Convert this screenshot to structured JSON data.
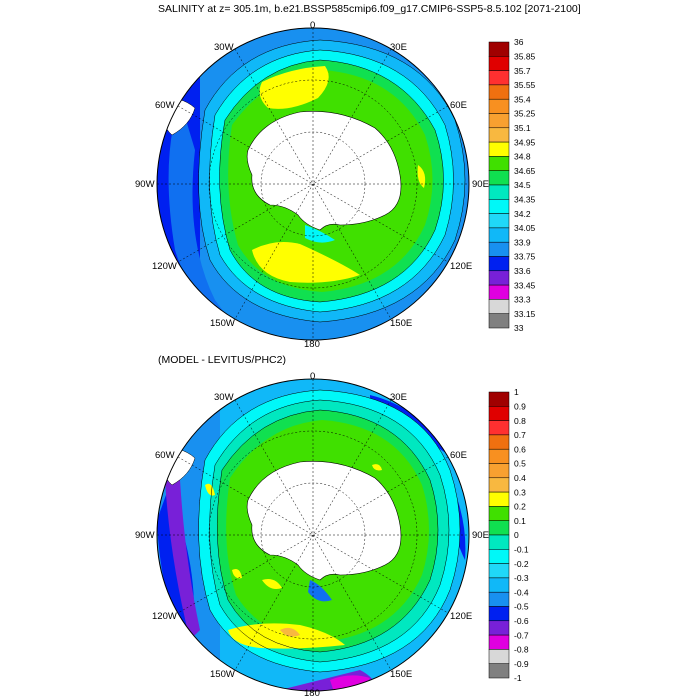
{
  "top_panel": {
    "title": "SALINITY at z= 305.1m, b.e21.BSSP585cmip6.f09_g17.CMIP6-SSP5-8.5.102 [2071-2100]",
    "lon_labels": [
      "0",
      "30E",
      "60E",
      "90E",
      "120E",
      "150E",
      "180",
      "150W",
      "120W",
      "90W",
      "60W",
      "30W"
    ],
    "colorbar": {
      "labels": [
        "36",
        "35.85",
        "35.7",
        "35.55",
        "35.4",
        "35.25",
        "35.1",
        "34.95",
        "34.8",
        "34.65",
        "34.5",
        "34.35",
        "34.2",
        "34.05",
        "33.9",
        "33.75",
        "33.6",
        "33.45",
        "33.3",
        "33.15",
        "33"
      ],
      "colors": [
        "#a00000",
        "#e00000",
        "#ff3030",
        "#f07010",
        "#f89020",
        "#f8a030",
        "#f8b840",
        "#ffff00",
        "#40e000",
        "#10e050",
        "#00e8c0",
        "#00f8f8",
        "#20d8f8",
        "#10b8f8",
        "#1890f0",
        "#0020f0",
        "#7820d8",
        "#e000e0",
        "#d8d8d8",
        "#808080"
      ]
    }
  },
  "bottom_panel": {
    "title": "(MODEL - LEVITUS/PHC2)",
    "lon_labels": [
      "0",
      "30E",
      "60E",
      "90E",
      "120E",
      "150E",
      "180",
      "150W",
      "120W",
      "90W",
      "60W",
      "30W"
    ],
    "colorbar": {
      "labels": [
        "1",
        "0.9",
        "0.8",
        "0.7",
        "0.6",
        "0.5",
        "0.4",
        "0.3",
        "0.2",
        "0.1",
        "0",
        "-0.1",
        "-0.2",
        "-0.3",
        "-0.4",
        "-0.5",
        "-0.6",
        "-0.7",
        "-0.8",
        "-0.9",
        "-1"
      ],
      "colors": [
        "#a00000",
        "#e00000",
        "#ff3030",
        "#f07010",
        "#f89020",
        "#f8a030",
        "#f8b840",
        "#ffff00",
        "#40e000",
        "#10e050",
        "#00e8c0",
        "#00f8f8",
        "#20d8f8",
        "#10b8f8",
        "#1890f0",
        "#0020f0",
        "#7820d8",
        "#e000e0",
        "#d8d8d8",
        "#808080"
      ]
    }
  }
}
